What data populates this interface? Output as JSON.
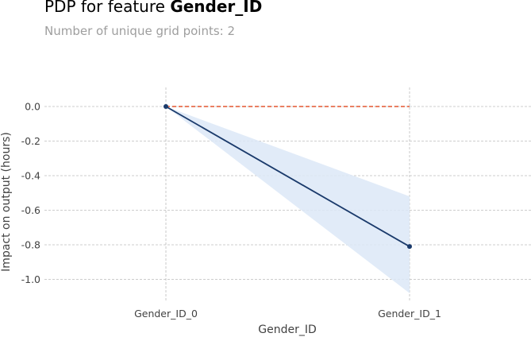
{
  "header": {
    "title_prefix": "PDP for feature ",
    "title_feature": "Gender_ID",
    "subtitle": "Number of unique grid points: 2"
  },
  "chart_data": {
    "type": "line",
    "title": "PDP for feature Gender_ID",
    "subtitle": "Number of unique grid points: 2",
    "xlabel": "Gender_ID",
    "ylabel": "Impact on output (hours)",
    "categories": [
      "Gender_ID_0",
      "Gender_ID_1"
    ],
    "series": [
      {
        "values": [
          0.0,
          -0.81
        ],
        "color": "#1a3a6b"
      }
    ],
    "band": {
      "upper": [
        0.0,
        -0.52
      ],
      "lower": [
        0.0,
        -1.08
      ],
      "color": "#dce8f7"
    },
    "baseline": {
      "value": 0.0,
      "color": "#e4572e",
      "style": "dashed"
    },
    "yticks": [
      0.0,
      -0.2,
      -0.4,
      -0.6,
      -0.8,
      -1.0
    ],
    "ytick_labels": [
      "0.0",
      "-0.2",
      "-0.4",
      "-0.6",
      "-0.8",
      "-1.0"
    ],
    "ylim": [
      -1.1,
      0.05
    ],
    "grid": true
  }
}
